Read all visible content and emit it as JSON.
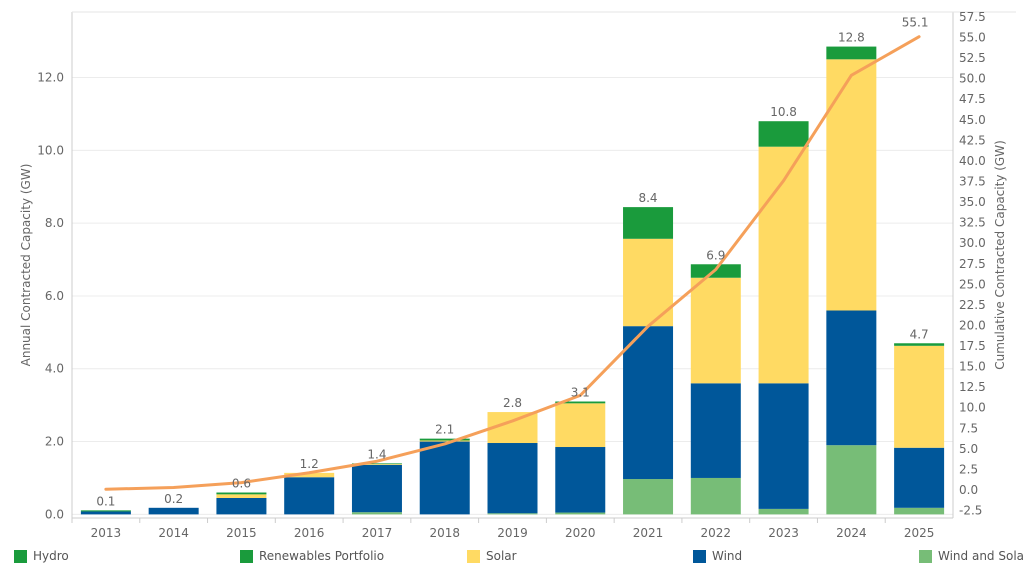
{
  "chart_data": {
    "type": "bar",
    "stacked": true,
    "categories": [
      "2013",
      "2014",
      "2015",
      "2016",
      "2017",
      "2018",
      "2019",
      "2020",
      "2021",
      "2022",
      "2023",
      "2024",
      "2025"
    ],
    "series": [
      {
        "name": "Wind and Solar",
        "color": "#77bd77",
        "values": [
          0.0,
          0.0,
          0.0,
          0.0,
          0.06,
          0.0,
          0.03,
          0.05,
          0.97,
          1.0,
          0.15,
          1.9,
          0.18
        ]
      },
      {
        "name": "Wind",
        "color": "#00579a",
        "values": [
          0.08,
          0.18,
          0.45,
          1.02,
          1.3,
          2.0,
          1.93,
          1.8,
          4.2,
          2.6,
          3.45,
          3.7,
          1.65
        ]
      },
      {
        "name": "Solar",
        "color": "#ffda63",
        "values": [
          0.0,
          0.0,
          0.1,
          0.12,
          0.02,
          0.03,
          0.85,
          1.2,
          2.4,
          2.9,
          6.5,
          6.9,
          2.8
        ]
      },
      {
        "name": "Renewables Portfolio",
        "color": "#1a9b3c",
        "values": [
          0.03,
          0.0,
          0.05,
          0.0,
          0.02,
          0.05,
          0.0,
          0.05,
          0.87,
          0.37,
          0.7,
          0.35,
          0.07
        ]
      },
      {
        "name": "Hydro",
        "color": "#1a9b3c",
        "values": [
          0,
          0,
          0,
          0,
          0,
          0,
          0,
          0,
          0,
          0,
          0,
          0,
          0
        ]
      }
    ],
    "totals_labels": [
      "0.1",
      "0.2",
      "0.6",
      "1.2",
      "1.4",
      "2.1",
      "2.8",
      "3.1",
      "8.4",
      "6.9",
      "10.8",
      "12.8",
      "4.7"
    ],
    "line": {
      "name": "Cumulative Contracted Capacity",
      "color": "#f5a05a",
      "values": [
        0.1,
        0.3,
        0.9,
        2.1,
        3.5,
        5.6,
        8.4,
        11.5,
        19.9,
        26.8,
        37.6,
        50.4,
        55.1
      ],
      "end_label": "55.1"
    },
    "ylabel": "Annual Contracted Capacity (GW)",
    "ylabel_right": "Cumulative Contracted Capacity (GW)",
    "ylim": [
      -0.1,
      13.8
    ],
    "yticks": [
      "0.0",
      "2.0",
      "4.0",
      "6.0",
      "8.0",
      "10.0",
      "12.0"
    ],
    "ylim_right": [
      -3.4,
      58.1
    ],
    "yticks_right": [
      "-2.5",
      "0.0",
      "2.5",
      "5.0",
      "7.5",
      "10.0",
      "12.5",
      "15.0",
      "17.5",
      "20.0",
      "22.5",
      "25.0",
      "27.5",
      "30.0",
      "32.5",
      "35.0",
      "37.5",
      "40.0",
      "42.5",
      "45.0",
      "47.5",
      "50.0",
      "52.5",
      "55.0",
      "57.5"
    ],
    "grid": true,
    "legend_position": "bottom",
    "legend": [
      {
        "name": "Hydro",
        "color": "#1a9b3c"
      },
      {
        "name": "Renewables Portfolio",
        "color": "#1a9b3c"
      },
      {
        "name": "Solar",
        "color": "#ffda63"
      },
      {
        "name": "Wind",
        "color": "#00579a"
      },
      {
        "name": "Wind and Solar",
        "color": "#77bd77"
      }
    ]
  }
}
